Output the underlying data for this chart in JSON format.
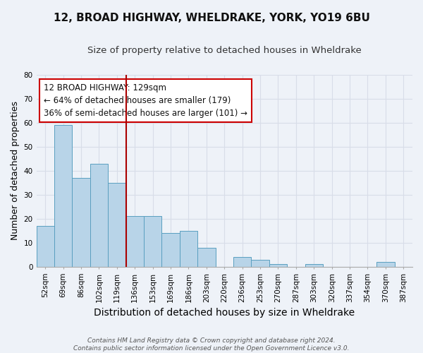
{
  "title": "12, BROAD HIGHWAY, WHELDRAKE, YORK, YO19 6BU",
  "subtitle": "Size of property relative to detached houses in Wheldrake",
  "xlabel": "Distribution of detached houses by size in Wheldrake",
  "ylabel": "Number of detached properties",
  "bin_labels": [
    "52sqm",
    "69sqm",
    "86sqm",
    "102sqm",
    "119sqm",
    "136sqm",
    "153sqm",
    "169sqm",
    "186sqm",
    "203sqm",
    "220sqm",
    "236sqm",
    "253sqm",
    "270sqm",
    "287sqm",
    "303sqm",
    "320sqm",
    "337sqm",
    "354sqm",
    "370sqm",
    "387sqm"
  ],
  "bar_values": [
    17,
    59,
    37,
    43,
    35,
    21,
    21,
    14,
    15,
    8,
    0,
    4,
    3,
    1,
    0,
    1,
    0,
    0,
    0,
    2,
    0
  ],
  "bar_color": "#b8d4e8",
  "bar_edge_color": "#5a9fc0",
  "vline_color": "#aa0000",
  "annotation_text": "12 BROAD HIGHWAY: 129sqm\n← 64% of detached houses are smaller (179)\n36% of semi-detached houses are larger (101) →",
  "ylim": [
    0,
    80
  ],
  "yticks": [
    0,
    10,
    20,
    30,
    40,
    50,
    60,
    70,
    80
  ],
  "footnote": "Contains HM Land Registry data © Crown copyright and database right 2024.\nContains public sector information licensed under the Open Government Licence v3.0.",
  "bg_color": "#eef2f8",
  "grid_color": "#d8dde8",
  "title_fontsize": 11,
  "subtitle_fontsize": 9.5,
  "xlabel_fontsize": 10,
  "ylabel_fontsize": 9,
  "annotation_fontsize": 8.5,
  "footnote_fontsize": 6.5,
  "tick_fontsize": 7.5
}
